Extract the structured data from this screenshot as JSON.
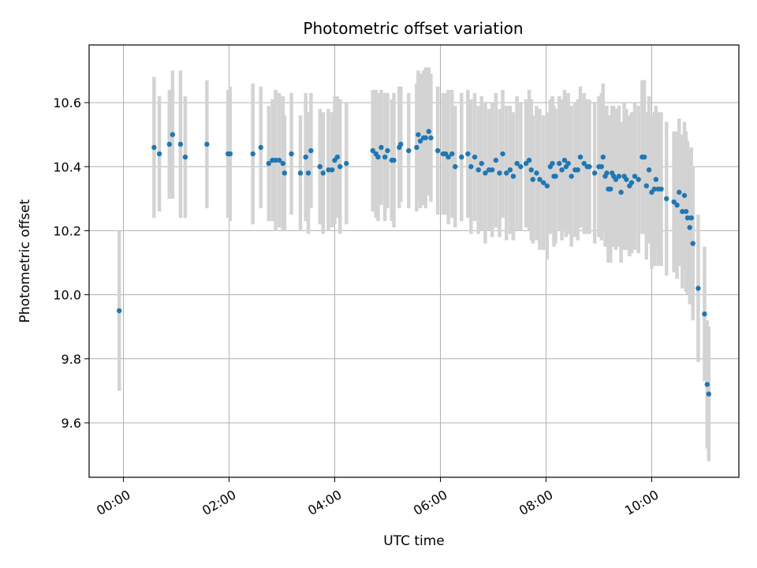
{
  "chart_data": {
    "type": "scatter",
    "title": "Photometric offset variation",
    "xlabel": "UTC time",
    "ylabel": "Photometric offset",
    "x_unit": "hours",
    "xlim": [
      -0.65,
      11.65
    ],
    "ylim": [
      9.43,
      10.78
    ],
    "grid": true,
    "x_ticks": [
      {
        "value": 0,
        "label": "00:00"
      },
      {
        "value": 2,
        "label": "02:00"
      },
      {
        "value": 4,
        "label": "04:00"
      },
      {
        "value": 6,
        "label": "06:00"
      },
      {
        "value": 8,
        "label": "08:00"
      },
      {
        "value": 10,
        "label": "10:00"
      }
    ],
    "y_ticks": [
      {
        "value": 9.6,
        "label": "9.6"
      },
      {
        "value": 9.8,
        "label": "9.8"
      },
      {
        "value": 10.0,
        "label": "10.0"
      },
      {
        "value": 10.2,
        "label": "10.2"
      },
      {
        "value": 10.4,
        "label": "10.4"
      },
      {
        "value": 10.6,
        "label": "10.6"
      }
    ],
    "colors": {
      "point": "#1f77b4",
      "errorbar": "#d3d3d3",
      "grid": "#b0b0b0"
    },
    "series": [
      {
        "points": [
          [
            -0.08,
            9.95,
            0.25
          ],
          [
            0.58,
            10.46,
            0.22
          ],
          [
            0.68,
            10.44,
            0.18
          ],
          [
            0.87,
            10.47,
            0.17
          ],
          [
            0.93,
            10.5,
            0.2
          ],
          [
            1.08,
            10.47,
            0.23
          ],
          [
            1.17,
            10.43,
            0.19
          ],
          [
            1.58,
            10.47,
            0.2
          ],
          [
            1.98,
            10.44,
            0.2
          ],
          [
            2.02,
            10.44,
            0.21
          ],
          [
            2.45,
            10.44,
            0.22
          ],
          [
            2.6,
            10.46,
            0.19
          ],
          [
            2.75,
            10.41,
            0.18
          ],
          [
            2.82,
            10.42,
            0.19
          ],
          [
            2.88,
            10.42,
            0.22
          ],
          [
            2.95,
            10.42,
            0.21
          ],
          [
            3.02,
            10.41,
            0.21
          ],
          [
            3.05,
            10.38,
            0.18
          ],
          [
            3.18,
            10.44,
            0.19
          ],
          [
            3.35,
            10.38,
            0.18
          ],
          [
            3.45,
            10.43,
            0.2
          ],
          [
            3.5,
            10.38,
            0.19
          ],
          [
            3.55,
            10.45,
            0.18
          ],
          [
            3.72,
            10.4,
            0.18
          ],
          [
            3.78,
            10.38,
            0.19
          ],
          [
            3.88,
            10.39,
            0.19
          ],
          [
            3.95,
            10.39,
            0.18
          ],
          [
            4.0,
            10.42,
            0.2
          ],
          [
            4.05,
            10.43,
            0.19
          ],
          [
            4.1,
            10.4,
            0.21
          ],
          [
            4.22,
            10.41,
            0.19
          ],
          [
            4.72,
            10.45,
            0.19
          ],
          [
            4.78,
            10.44,
            0.2
          ],
          [
            4.82,
            10.43,
            0.2
          ],
          [
            4.88,
            10.46,
            0.18
          ],
          [
            4.95,
            10.43,
            0.2
          ],
          [
            5.0,
            10.45,
            0.18
          ],
          [
            5.08,
            10.42,
            0.19
          ],
          [
            5.12,
            10.42,
            0.21
          ],
          [
            5.22,
            10.46,
            0.19
          ],
          [
            5.25,
            10.47,
            0.18
          ],
          [
            5.4,
            10.45,
            0.18
          ],
          [
            5.55,
            10.46,
            0.2
          ],
          [
            5.58,
            10.5,
            0.2
          ],
          [
            5.62,
            10.48,
            0.21
          ],
          [
            5.68,
            10.49,
            0.21
          ],
          [
            5.72,
            10.49,
            0.22
          ],
          [
            5.78,
            10.51,
            0.2
          ],
          [
            5.82,
            10.49,
            0.2
          ],
          [
            5.95,
            10.45,
            0.2
          ],
          [
            6.05,
            10.44,
            0.19
          ],
          [
            6.1,
            10.44,
            0.19
          ],
          [
            6.15,
            10.43,
            0.21
          ],
          [
            6.22,
            10.44,
            0.2
          ],
          [
            6.28,
            10.4,
            0.19
          ],
          [
            6.4,
            10.43,
            0.2
          ],
          [
            6.52,
            10.44,
            0.2
          ],
          [
            6.58,
            10.4,
            0.21
          ],
          [
            6.65,
            10.43,
            0.2
          ],
          [
            6.72,
            10.39,
            0.2
          ],
          [
            6.78,
            10.41,
            0.21
          ],
          [
            6.85,
            10.38,
            0.22
          ],
          [
            6.92,
            10.39,
            0.19
          ],
          [
            6.98,
            10.39,
            0.21
          ],
          [
            7.05,
            10.42,
            0.21
          ],
          [
            7.12,
            10.38,
            0.2
          ],
          [
            7.18,
            10.44,
            0.2
          ],
          [
            7.25,
            10.38,
            0.21
          ],
          [
            7.32,
            10.39,
            0.2
          ],
          [
            7.38,
            10.37,
            0.2
          ],
          [
            7.45,
            10.41,
            0.21
          ],
          [
            7.52,
            10.4,
            0.2
          ],
          [
            7.62,
            10.41,
            0.2
          ],
          [
            7.68,
            10.42,
            0.22
          ],
          [
            7.72,
            10.39,
            0.22
          ],
          [
            7.75,
            10.36,
            0.2
          ],
          [
            7.82,
            10.38,
            0.21
          ],
          [
            7.88,
            10.36,
            0.22
          ],
          [
            7.95,
            10.35,
            0.21
          ],
          [
            8.02,
            10.34,
            0.23
          ],
          [
            8.08,
            10.4,
            0.21
          ],
          [
            8.12,
            10.41,
            0.21
          ],
          [
            8.15,
            10.37,
            0.22
          ],
          [
            8.18,
            10.37,
            0.21
          ],
          [
            8.25,
            10.41,
            0.21
          ],
          [
            8.3,
            10.39,
            0.22
          ],
          [
            8.35,
            10.42,
            0.22
          ],
          [
            8.38,
            10.4,
            0.22
          ],
          [
            8.42,
            10.41,
            0.22
          ],
          [
            8.48,
            10.37,
            0.22
          ],
          [
            8.55,
            10.39,
            0.21
          ],
          [
            8.6,
            10.39,
            0.22
          ],
          [
            8.65,
            10.43,
            0.22
          ],
          [
            8.72,
            10.41,
            0.22
          ],
          [
            8.78,
            10.4,
            0.21
          ],
          [
            8.82,
            10.4,
            0.21
          ],
          [
            8.92,
            10.38,
            0.22
          ],
          [
            9.0,
            10.4,
            0.22
          ],
          [
            9.05,
            10.4,
            0.23
          ],
          [
            9.08,
            10.43,
            0.23
          ],
          [
            9.12,
            10.37,
            0.22
          ],
          [
            9.15,
            10.38,
            0.21
          ],
          [
            9.18,
            10.33,
            0.23
          ],
          [
            9.22,
            10.33,
            0.23
          ],
          [
            9.25,
            10.38,
            0.21
          ],
          [
            9.28,
            10.37,
            0.22
          ],
          [
            9.32,
            10.36,
            0.22
          ],
          [
            9.38,
            10.37,
            0.22
          ],
          [
            9.42,
            10.32,
            0.22
          ],
          [
            9.48,
            10.37,
            0.23
          ],
          [
            9.52,
            10.36,
            0.22
          ],
          [
            9.58,
            10.34,
            0.22
          ],
          [
            9.62,
            10.35,
            0.22
          ],
          [
            9.68,
            10.37,
            0.23
          ],
          [
            9.75,
            10.36,
            0.23
          ],
          [
            9.82,
            10.43,
            0.24
          ],
          [
            9.86,
            10.43,
            0.24
          ],
          [
            9.9,
            10.34,
            0.23
          ],
          [
            9.95,
            10.39,
            0.23
          ],
          [
            10.0,
            10.32,
            0.24
          ],
          [
            10.05,
            10.33,
            0.24
          ],
          [
            10.08,
            10.36,
            0.23
          ],
          [
            10.12,
            10.33,
            0.24
          ],
          [
            10.18,
            10.33,
            0.24
          ],
          [
            10.28,
            10.3,
            0.24
          ],
          [
            10.42,
            10.29,
            0.22
          ],
          [
            10.48,
            10.28,
            0.23
          ],
          [
            10.52,
            10.32,
            0.23
          ],
          [
            10.58,
            10.26,
            0.24
          ],
          [
            10.62,
            10.31,
            0.23
          ],
          [
            10.65,
            10.26,
            0.25
          ],
          [
            10.68,
            10.24,
            0.24
          ],
          [
            10.72,
            10.21,
            0.24
          ],
          [
            10.75,
            10.24,
            0.22
          ],
          [
            10.78,
            10.16,
            0.24
          ],
          [
            10.88,
            10.02,
            0.23
          ],
          [
            11.0,
            9.94,
            0.21
          ],
          [
            11.05,
            9.72,
            0.2
          ],
          [
            11.08,
            9.69,
            0.21
          ]
        ]
      }
    ]
  }
}
